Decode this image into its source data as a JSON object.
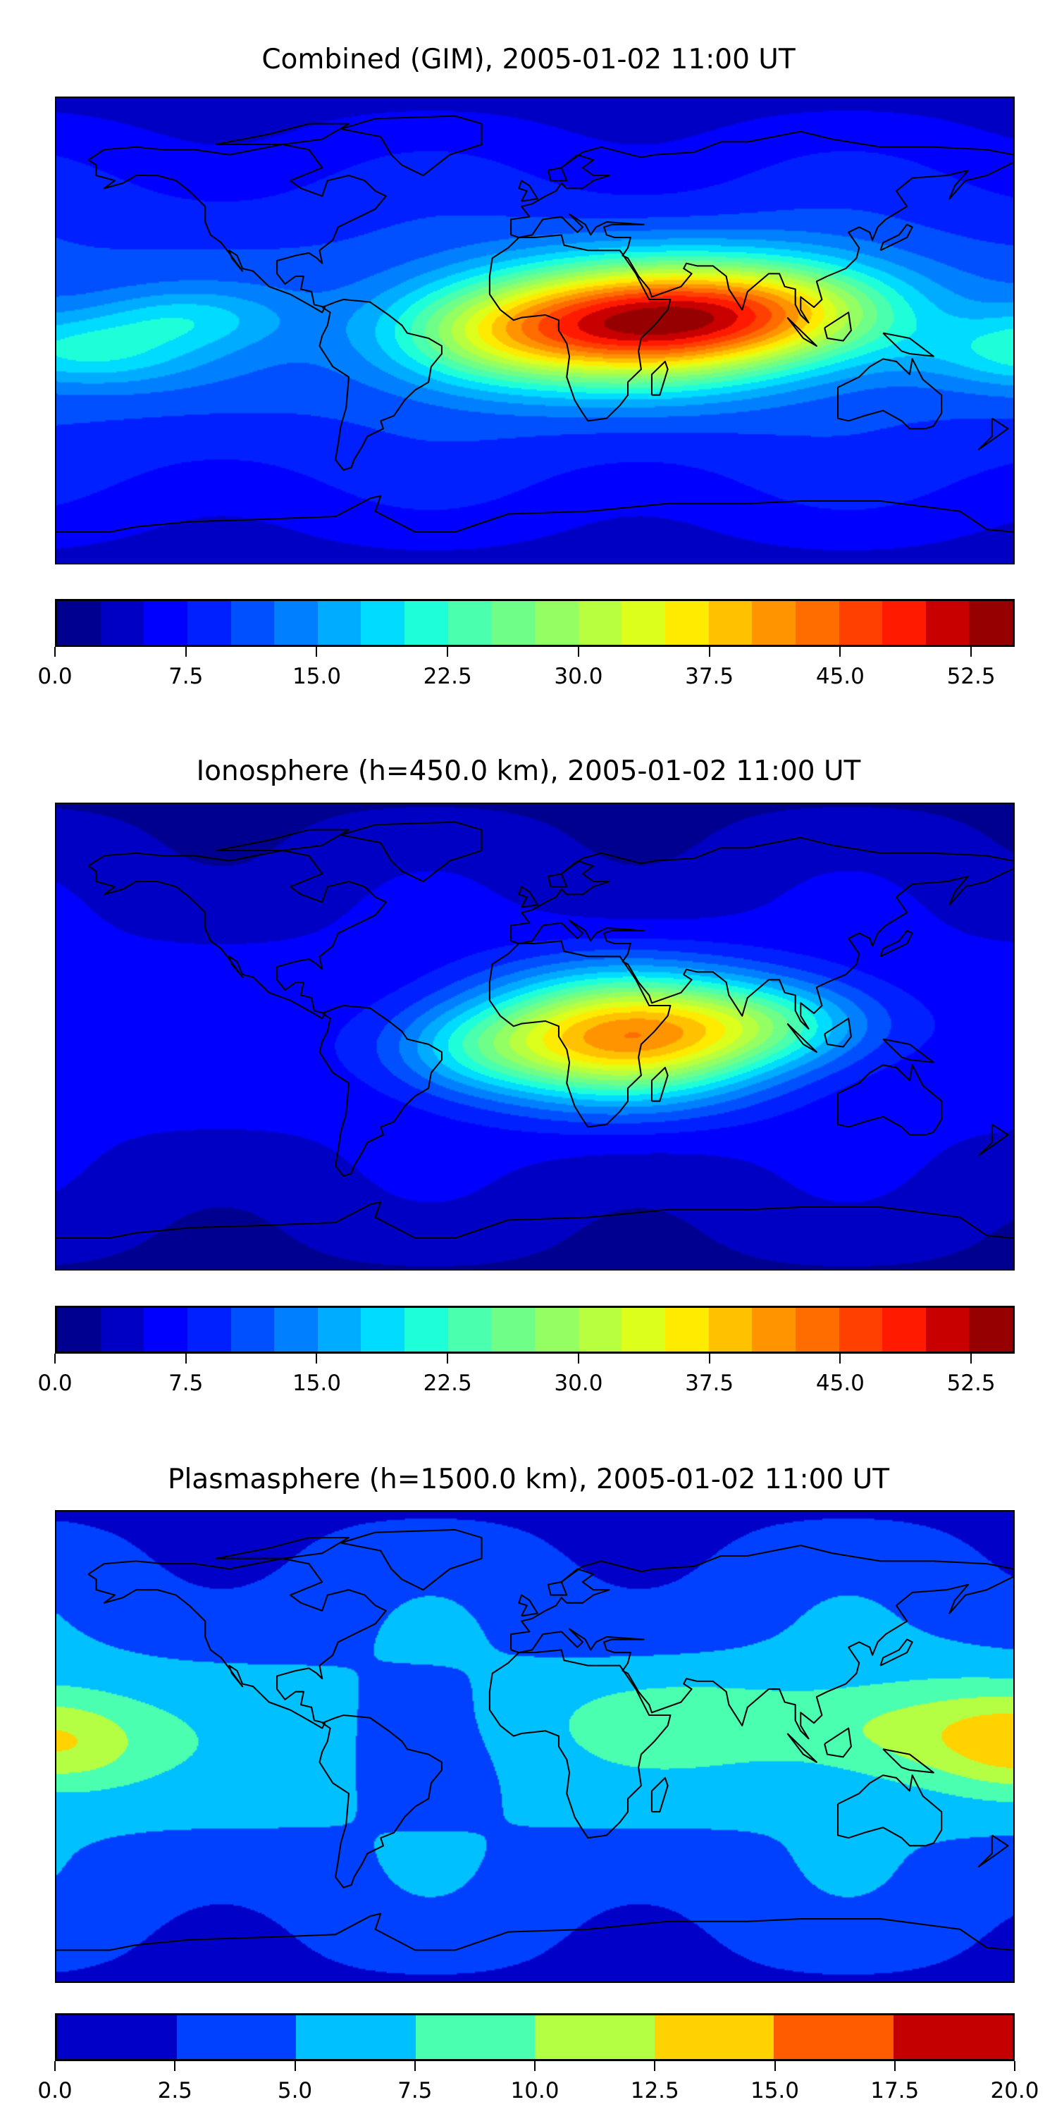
{
  "chart_data": [
    {
      "type": "heatmap",
      "title": "Combined (GIM), 2005-01-02 11:00 UT",
      "levels_min": 0,
      "levels_max": 55,
      "levels_step": 2.5,
      "ticks": [
        "0.0",
        "7.5",
        "15.0",
        "22.5",
        "30.0",
        "37.5",
        "45.0",
        "52.5"
      ],
      "tick_values": [
        0,
        7.5,
        15,
        22.5,
        30,
        37.5,
        45,
        52.5
      ],
      "colors": [
        "#000090",
        "#0000c4",
        "#0000ff",
        "#0020ff",
        "#0050ff",
        "#0080ff",
        "#00acff",
        "#00dcff",
        "#1effd9",
        "#4affad",
        "#6fff88",
        "#94ff63",
        "#b8ff3f",
        "#dcff1b",
        "#ffeb00",
        "#ffc100",
        "#ff9400",
        "#ff6c00",
        "#ff4000",
        "#ff1a00",
        "#c80000",
        "#960000"
      ],
      "field": {
        "base": 11,
        "hotspots": [
          {
            "lon": 38,
            "lat": 3,
            "amp": 36,
            "slon": 42,
            "slat": 16
          },
          {
            "lon": 95,
            "lat": 8,
            "amp": 18,
            "slon": 35,
            "slat": 14
          },
          {
            "lon": -20,
            "lat": -2,
            "amp": 12,
            "slon": 30,
            "slat": 14
          },
          {
            "lon": -170,
            "lat": -8,
            "amp": 10,
            "slon": 30,
            "slat": 10
          },
          {
            "lon": -130,
            "lat": 5,
            "amp": 6,
            "slon": 25,
            "slat": 8
          }
        ]
      }
    },
    {
      "type": "heatmap",
      "title": "Ionosphere  (h=450.0 km), 2005-01-02 11:00 UT",
      "levels_min": 0,
      "levels_max": 55,
      "levels_step": 2.5,
      "ticks": [
        "0.0",
        "7.5",
        "15.0",
        "22.5",
        "30.0",
        "37.5",
        "45.0",
        "52.5"
      ],
      "tick_values": [
        0,
        7.5,
        15,
        22.5,
        30,
        37.5,
        45,
        52.5
      ],
      "colors": [
        "#000090",
        "#0000c4",
        "#0000ff",
        "#0020ff",
        "#0050ff",
        "#0080ff",
        "#00acff",
        "#00dcff",
        "#1effd9",
        "#4affad",
        "#6fff88",
        "#94ff63",
        "#b8ff3f",
        "#dcff1b",
        "#ffeb00",
        "#ffc100",
        "#ff9400",
        "#ff6c00",
        "#ff4000",
        "#ff1a00",
        "#c80000",
        "#960000"
      ],
      "field": {
        "base": 6,
        "hotspots": [
          {
            "lon": 32,
            "lat": 0,
            "amp": 33,
            "slon": 38,
            "slat": 17
          },
          {
            "lon": 90,
            "lat": 5,
            "amp": 12,
            "slon": 30,
            "slat": 12
          },
          {
            "lon": -25,
            "lat": -5,
            "amp": 8,
            "slon": 25,
            "slat": 12
          }
        ]
      }
    },
    {
      "type": "heatmap",
      "title": "Plasmasphere (h=1500.0 km), 2005-01-02 11:00 UT",
      "levels_min": 0,
      "levels_max": 20,
      "levels_step": 2.5,
      "ticks": [
        "0.0",
        "2.5",
        "5.0",
        "7.5",
        "10.0",
        "12.5",
        "15.0",
        "17.5",
        "20.0"
      ],
      "tick_values": [
        0,
        2.5,
        5,
        7.5,
        10,
        12.5,
        15,
        17.5,
        20
      ],
      "colors": [
        "#0000c8",
        "#0040ff",
        "#00c0ff",
        "#4affb0",
        "#b4ff44",
        "#ffd200",
        "#ff5c00",
        "#c40000"
      ],
      "field": {
        "base": 5.5,
        "hotspots": [
          {
            "lon": 150,
            "lat": 5,
            "amp": 6,
            "slon": 40,
            "slat": 15
          },
          {
            "lon": 60,
            "lat": 10,
            "amp": 3,
            "slon": 40,
            "slat": 12
          },
          {
            "lon": -175,
            "lat": 0,
            "amp": 4,
            "slon": 20,
            "slat": 12
          }
        ]
      }
    }
  ]
}
